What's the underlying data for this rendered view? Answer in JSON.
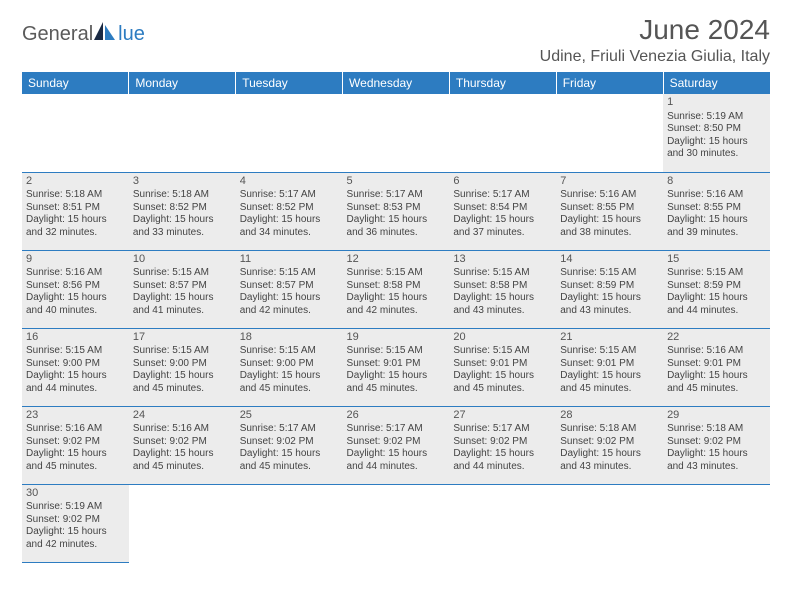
{
  "logo": {
    "part1": "General",
    "part2": "lue"
  },
  "title": "June 2024",
  "location": "Udine, Friuli Venezia Giulia, Italy",
  "colors": {
    "header_bg": "#2d7cc1",
    "header_text": "#ffffff",
    "cell_fill": "#ececec",
    "border": "#2d7cc1",
    "text": "#444444",
    "title_text": "#555555"
  },
  "day_headers": [
    "Sunday",
    "Monday",
    "Tuesday",
    "Wednesday",
    "Thursday",
    "Friday",
    "Saturday"
  ],
  "weeks": [
    [
      null,
      null,
      null,
      null,
      null,
      null,
      {
        "n": "1",
        "sr": "5:19 AM",
        "ss": "8:50 PM",
        "dl1": "15 hours",
        "dl2": "and 30 minutes."
      }
    ],
    [
      {
        "n": "2",
        "sr": "5:18 AM",
        "ss": "8:51 PM",
        "dl1": "15 hours",
        "dl2": "and 32 minutes."
      },
      {
        "n": "3",
        "sr": "5:18 AM",
        "ss": "8:52 PM",
        "dl1": "15 hours",
        "dl2": "and 33 minutes."
      },
      {
        "n": "4",
        "sr": "5:17 AM",
        "ss": "8:52 PM",
        "dl1": "15 hours",
        "dl2": "and 34 minutes."
      },
      {
        "n": "5",
        "sr": "5:17 AM",
        "ss": "8:53 PM",
        "dl1": "15 hours",
        "dl2": "and 36 minutes."
      },
      {
        "n": "6",
        "sr": "5:17 AM",
        "ss": "8:54 PM",
        "dl1": "15 hours",
        "dl2": "and 37 minutes."
      },
      {
        "n": "7",
        "sr": "5:16 AM",
        "ss": "8:55 PM",
        "dl1": "15 hours",
        "dl2": "and 38 minutes."
      },
      {
        "n": "8",
        "sr": "5:16 AM",
        "ss": "8:55 PM",
        "dl1": "15 hours",
        "dl2": "and 39 minutes."
      }
    ],
    [
      {
        "n": "9",
        "sr": "5:16 AM",
        "ss": "8:56 PM",
        "dl1": "15 hours",
        "dl2": "and 40 minutes."
      },
      {
        "n": "10",
        "sr": "5:15 AM",
        "ss": "8:57 PM",
        "dl1": "15 hours",
        "dl2": "and 41 minutes."
      },
      {
        "n": "11",
        "sr": "5:15 AM",
        "ss": "8:57 PM",
        "dl1": "15 hours",
        "dl2": "and 42 minutes."
      },
      {
        "n": "12",
        "sr": "5:15 AM",
        "ss": "8:58 PM",
        "dl1": "15 hours",
        "dl2": "and 42 minutes."
      },
      {
        "n": "13",
        "sr": "5:15 AM",
        "ss": "8:58 PM",
        "dl1": "15 hours",
        "dl2": "and 43 minutes."
      },
      {
        "n": "14",
        "sr": "5:15 AM",
        "ss": "8:59 PM",
        "dl1": "15 hours",
        "dl2": "and 43 minutes."
      },
      {
        "n": "15",
        "sr": "5:15 AM",
        "ss": "8:59 PM",
        "dl1": "15 hours",
        "dl2": "and 44 minutes."
      }
    ],
    [
      {
        "n": "16",
        "sr": "5:15 AM",
        "ss": "9:00 PM",
        "dl1": "15 hours",
        "dl2": "and 44 minutes."
      },
      {
        "n": "17",
        "sr": "5:15 AM",
        "ss": "9:00 PM",
        "dl1": "15 hours",
        "dl2": "and 45 minutes."
      },
      {
        "n": "18",
        "sr": "5:15 AM",
        "ss": "9:00 PM",
        "dl1": "15 hours",
        "dl2": "and 45 minutes."
      },
      {
        "n": "19",
        "sr": "5:15 AM",
        "ss": "9:01 PM",
        "dl1": "15 hours",
        "dl2": "and 45 minutes."
      },
      {
        "n": "20",
        "sr": "5:15 AM",
        "ss": "9:01 PM",
        "dl1": "15 hours",
        "dl2": "and 45 minutes."
      },
      {
        "n": "21",
        "sr": "5:15 AM",
        "ss": "9:01 PM",
        "dl1": "15 hours",
        "dl2": "and 45 minutes."
      },
      {
        "n": "22",
        "sr": "5:16 AM",
        "ss": "9:01 PM",
        "dl1": "15 hours",
        "dl2": "and 45 minutes."
      }
    ],
    [
      {
        "n": "23",
        "sr": "5:16 AM",
        "ss": "9:02 PM",
        "dl1": "15 hours",
        "dl2": "and 45 minutes."
      },
      {
        "n": "24",
        "sr": "5:16 AM",
        "ss": "9:02 PM",
        "dl1": "15 hours",
        "dl2": "and 45 minutes."
      },
      {
        "n": "25",
        "sr": "5:17 AM",
        "ss": "9:02 PM",
        "dl1": "15 hours",
        "dl2": "and 45 minutes."
      },
      {
        "n": "26",
        "sr": "5:17 AM",
        "ss": "9:02 PM",
        "dl1": "15 hours",
        "dl2": "and 44 minutes."
      },
      {
        "n": "27",
        "sr": "5:17 AM",
        "ss": "9:02 PM",
        "dl1": "15 hours",
        "dl2": "and 44 minutes."
      },
      {
        "n": "28",
        "sr": "5:18 AM",
        "ss": "9:02 PM",
        "dl1": "15 hours",
        "dl2": "and 43 minutes."
      },
      {
        "n": "29",
        "sr": "5:18 AM",
        "ss": "9:02 PM",
        "dl1": "15 hours",
        "dl2": "and 43 minutes."
      }
    ],
    [
      {
        "n": "30",
        "sr": "5:19 AM",
        "ss": "9:02 PM",
        "dl1": "15 hours",
        "dl2": "and 42 minutes."
      },
      null,
      null,
      null,
      null,
      null,
      null
    ]
  ],
  "labels": {
    "sunrise": "Sunrise: ",
    "sunset": "Sunset: ",
    "daylight": "Daylight: "
  }
}
